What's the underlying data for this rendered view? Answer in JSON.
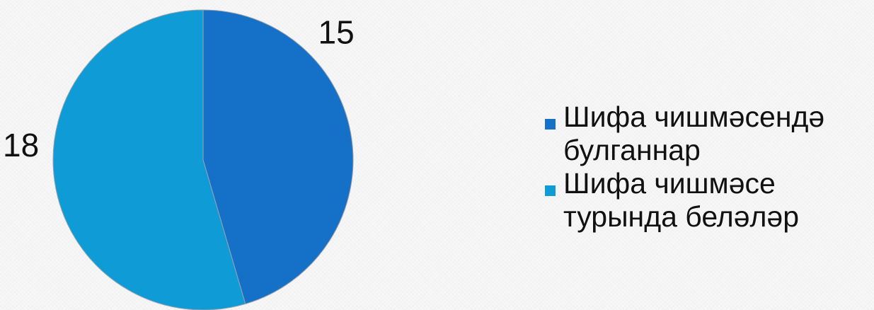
{
  "chart_data": {
    "type": "pie",
    "title": "",
    "slices": [
      {
        "label": "Шифа чишмәсендә булганнар",
        "value": 15,
        "value_label": "15",
        "color": "#1570C8"
      },
      {
        "label": "Шифа чишмәсе турында беләләр",
        "value": 18,
        "value_label": "18",
        "color": "#0F9BD5"
      }
    ],
    "legend_position": "right",
    "start_angle": "top, clockwise"
  },
  "legend": {
    "items": [
      {
        "label": "Шифа чишмәсендә булганнар",
        "color": "#1570C8"
      },
      {
        "label": "Шифа чишмәсе турында беләләр",
        "color": "#0F9BD5"
      }
    ]
  },
  "colors": {
    "slice_border": "#9aa3ad",
    "background": "#f7f7f7"
  }
}
